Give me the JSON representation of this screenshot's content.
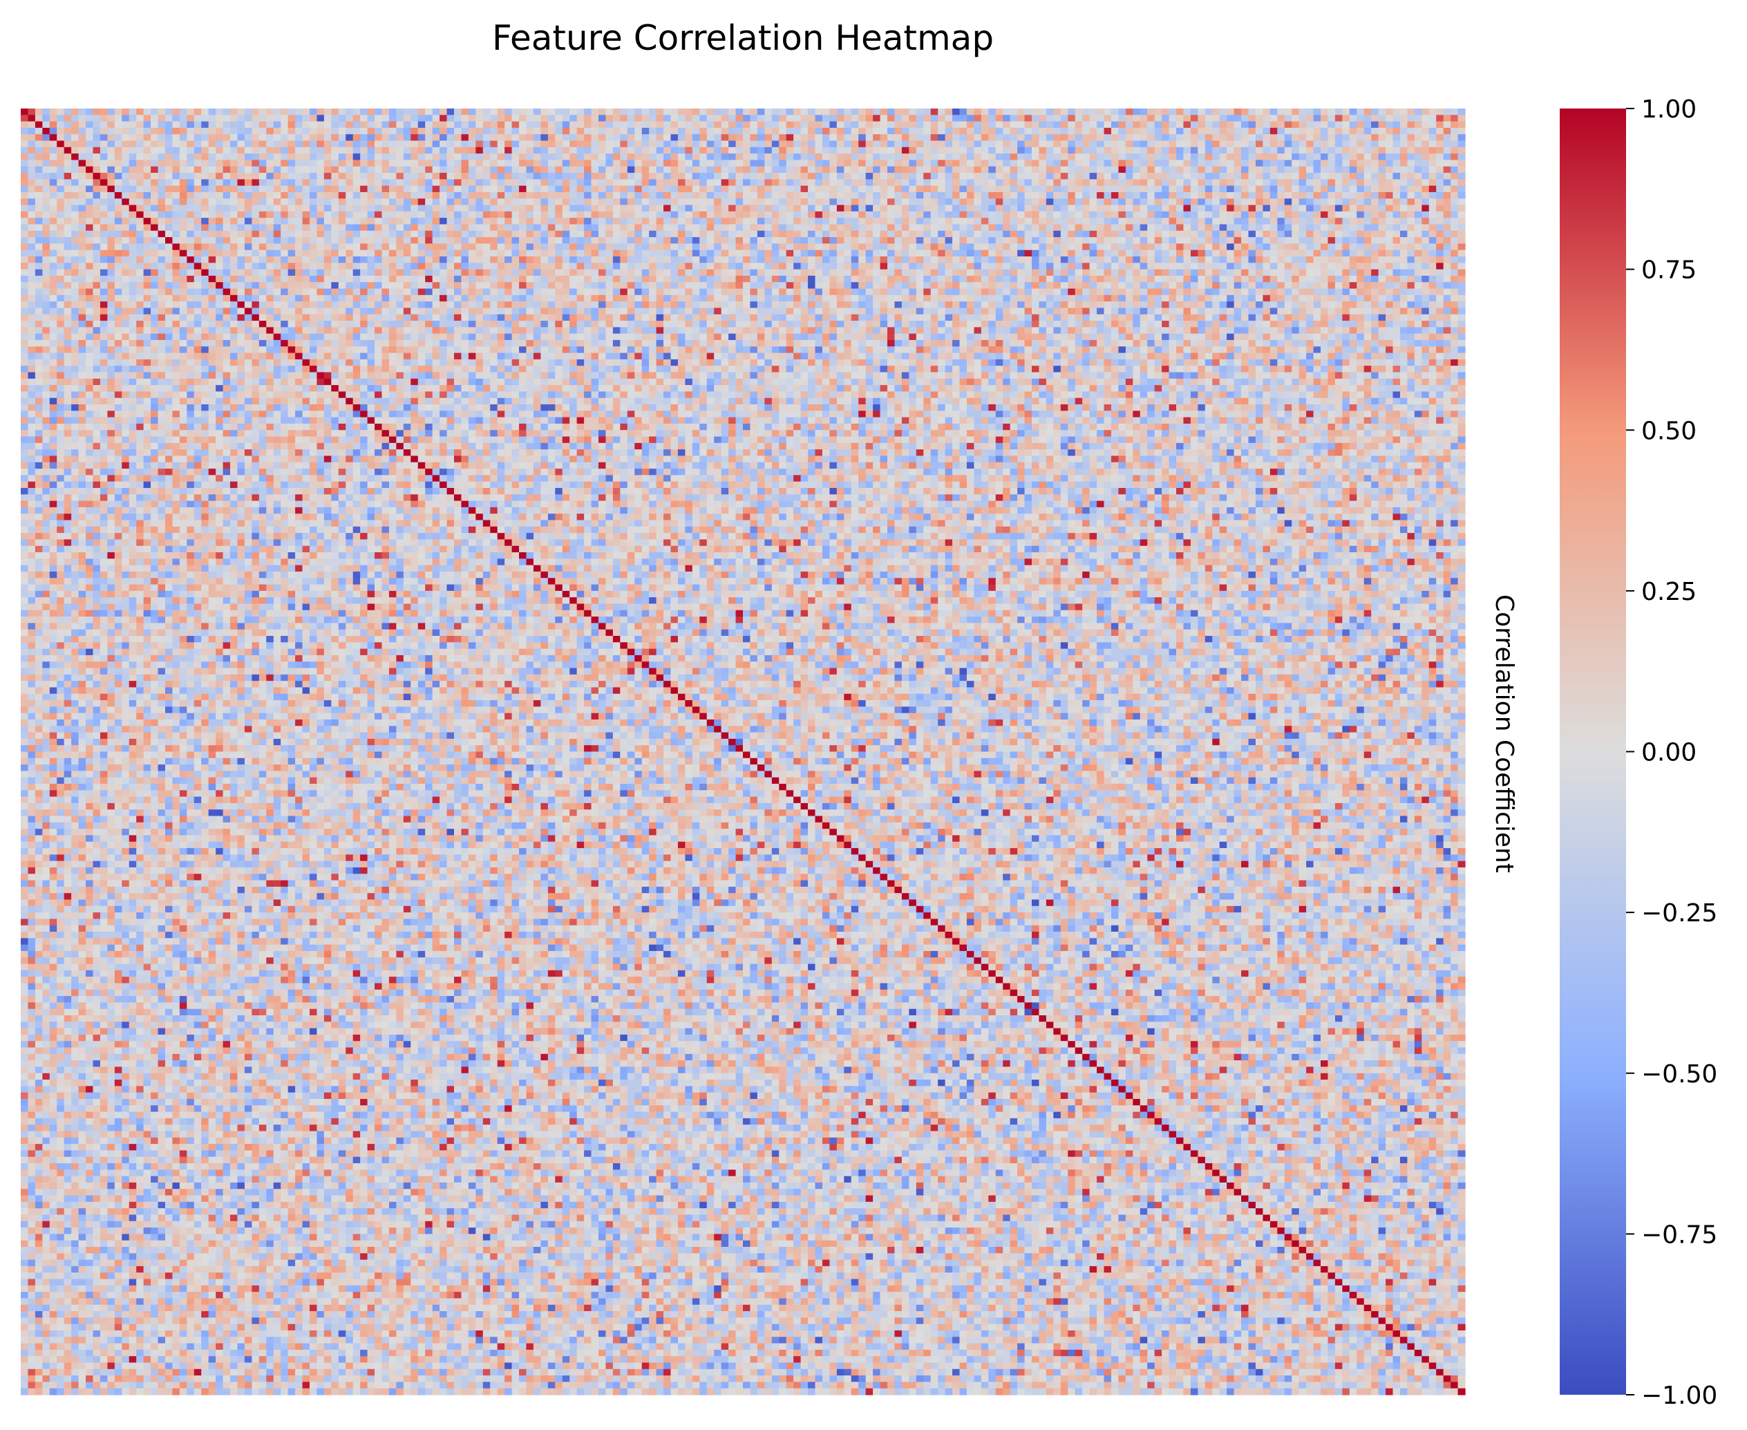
{
  "chart_data": {
    "type": "heatmap",
    "title": "Feature Correlation Heatmap",
    "xlabel": "",
    "ylabel": "",
    "matrix_size": 200,
    "diagonal_value": 1.0,
    "off_diagonal_distribution": "approximately symmetric random correlations mostly within -0.6 to 0.6, with occasional values near +/-0.9",
    "colormap": "coolwarm",
    "colormap_stops": [
      {
        "value": -1.0,
        "color": "#3b4cc0"
      },
      {
        "value": -0.5,
        "color": "#8db0fe"
      },
      {
        "value": 0.0,
        "color": "#dddddd"
      },
      {
        "value": 0.5,
        "color": "#f49a7b"
      },
      {
        "value": 1.0,
        "color": "#b40426"
      }
    ],
    "vmin": -1.0,
    "vmax": 1.0,
    "colorbar": {
      "label": "Correlation Coefficient",
      "ticks": [
        {
          "value": 1.0,
          "label": "1.00"
        },
        {
          "value": 0.75,
          "label": "0.75"
        },
        {
          "value": 0.5,
          "label": "0.50"
        },
        {
          "value": 0.25,
          "label": "0.25"
        },
        {
          "value": 0.0,
          "label": "0.00"
        },
        {
          "value": -0.25,
          "label": "−0.25"
        },
        {
          "value": -0.5,
          "label": "−0.50"
        },
        {
          "value": -0.75,
          "label": "−0.75"
        },
        {
          "value": -1.0,
          "label": "−1.00"
        }
      ]
    },
    "grid": false,
    "axis_tick_labels_visible": false,
    "legend": "colorbar-right"
  }
}
